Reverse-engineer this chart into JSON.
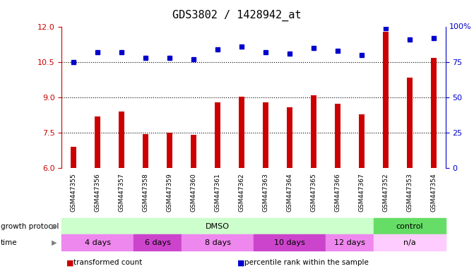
{
  "title": "GDS3802 / 1428942_at",
  "samples": [
    "GSM447355",
    "GSM447356",
    "GSM447357",
    "GSM447358",
    "GSM447359",
    "GSM447360",
    "GSM447361",
    "GSM447362",
    "GSM447363",
    "GSM447364",
    "GSM447365",
    "GSM447366",
    "GSM447367",
    "GSM447352",
    "GSM447353",
    "GSM447354"
  ],
  "bar_values": [
    6.9,
    8.2,
    8.4,
    7.45,
    7.5,
    7.4,
    8.8,
    9.05,
    8.8,
    8.6,
    9.1,
    8.75,
    8.3,
    11.8,
    9.85,
    10.7
  ],
  "dot_values": [
    75,
    82,
    82,
    78,
    78,
    77,
    84,
    86,
    82,
    81,
    85,
    83,
    80,
    99,
    91,
    92
  ],
  "bar_color": "#cc0000",
  "dot_color": "#0000cc",
  "ylim_left": [
    6,
    12
  ],
  "ylim_right": [
    0,
    100
  ],
  "yticks_left": [
    6,
    7.5,
    9,
    10.5,
    12
  ],
  "yticks_right": [
    0,
    25,
    50,
    75
  ],
  "hlines": [
    7.5,
    9.0,
    10.5
  ],
  "protocol_groups": [
    {
      "label": "DMSO",
      "start": 0,
      "end": 13,
      "color": "#ccffcc"
    },
    {
      "label": "control",
      "start": 13,
      "end": 16,
      "color": "#66dd66"
    }
  ],
  "time_groups": [
    {
      "label": "4 days",
      "start": 0,
      "end": 3,
      "color": "#ee88ee"
    },
    {
      "label": "6 days",
      "start": 3,
      "end": 5,
      "color": "#cc44cc"
    },
    {
      "label": "8 days",
      "start": 5,
      "end": 8,
      "color": "#ee88ee"
    },
    {
      "label": "10 days",
      "start": 8,
      "end": 11,
      "color": "#cc44cc"
    },
    {
      "label": "12 days",
      "start": 11,
      "end": 13,
      "color": "#ee88ee"
    },
    {
      "label": "n/a",
      "start": 13,
      "end": 16,
      "color": "#ffccff"
    }
  ],
  "legend_items": [
    {
      "label": "transformed count",
      "color": "#cc0000"
    },
    {
      "label": "percentile rank within the sample",
      "color": "#0000cc"
    }
  ],
  "background_color": "#ffffff",
  "label_color_left": "#cc0000",
  "label_color_right": "#0000cc",
  "bar_width": 0.25,
  "tick_fontsize": 8,
  "label_fontsize": 8,
  "title_fontsize": 11
}
